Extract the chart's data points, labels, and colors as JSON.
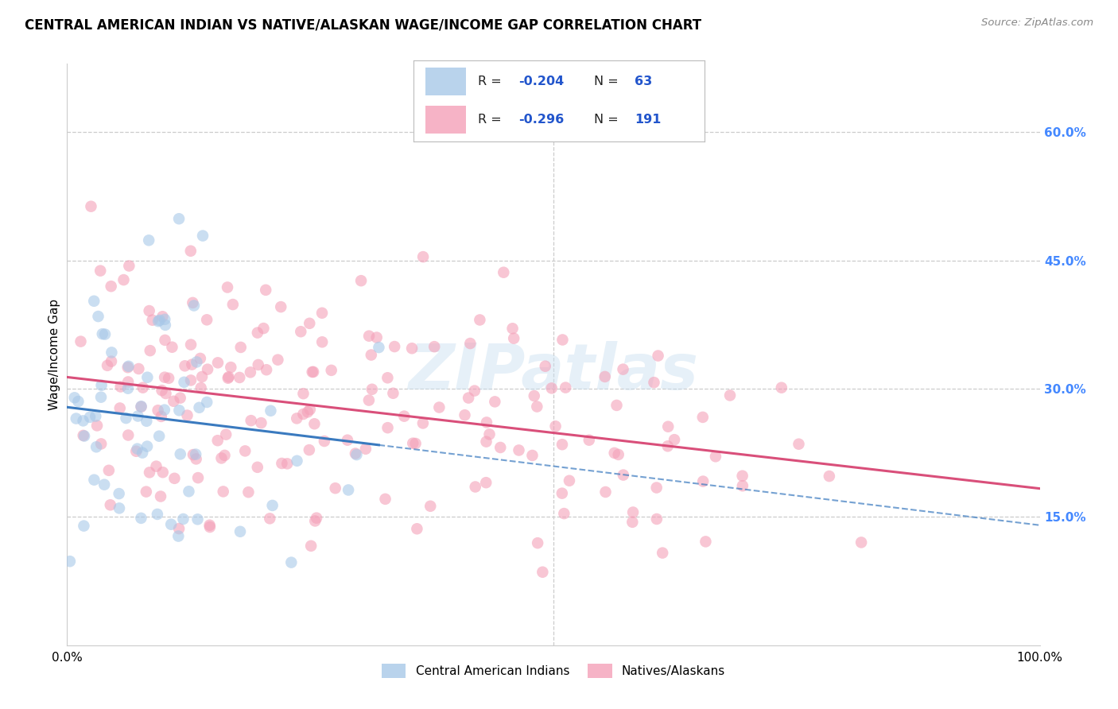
{
  "title": "CENTRAL AMERICAN INDIAN VS NATIVE/ALASKAN WAGE/INCOME GAP CORRELATION CHART",
  "source": "Source: ZipAtlas.com",
  "ylabel": "Wage/Income Gap",
  "xlim": [
    0.0,
    1.0
  ],
  "ylim": [
    0.0,
    0.68
  ],
  "right_yticks": [
    0.15,
    0.3,
    0.45,
    0.6
  ],
  "right_ytick_labels": [
    "15.0%",
    "30.0%",
    "45.0%",
    "60.0%"
  ],
  "blue_color": "#a8c8e8",
  "pink_color": "#f4a0b8",
  "blue_line_color": "#3a7abf",
  "pink_line_color": "#d94f7a",
  "grid_color": "#cccccc",
  "background_color": "#ffffff",
  "watermark": "ZIPatlas",
  "blue_R": -0.204,
  "blue_N": 63,
  "pink_R": -0.296,
  "pink_N": 191,
  "blue_seed": 12,
  "pink_seed": 99
}
